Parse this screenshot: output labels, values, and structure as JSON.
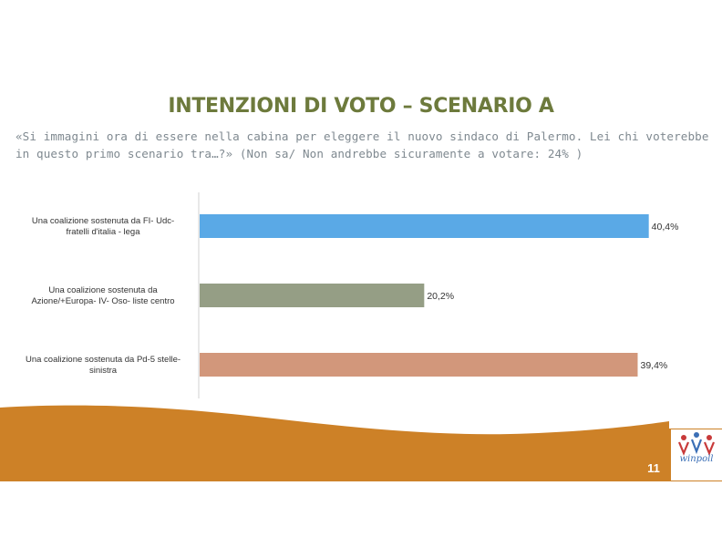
{
  "page": {
    "title": "INTENZIONI DI VOTO – SCENARIO A",
    "question": "«Si immagini ora di essere nella cabina per eleggere il nuovo sindaco di Palermo. Lei chi voterebbe in questo primo scenario tra…?» (Non sa/ Non andrebbe sicuramente a votare: 24% )",
    "page_number": "11",
    "logo_text": "winpoll"
  },
  "colors": {
    "title": "#6d7a3c",
    "band": "#cd8127",
    "bar1": "#5aa9e6",
    "bar2": "#959e85",
    "bar3": "#d2977b"
  },
  "chart_data": {
    "type": "bar",
    "orientation": "horizontal",
    "categories": [
      "Una coalizione sostenuta da FI- Udc-fratelli d'italia - lega",
      "Una coalizione sostenuta da Azione/+Europa- IV- Oso- liste centro",
      "Una coalizione sostenuta da Pd-5 stelle-sinistra"
    ],
    "category_lines": [
      [
        "Una coalizione sostenuta da FI- Udc-",
        "fratelli d'italia - lega"
      ],
      [
        "Una coalizione sostenuta da",
        "Azione/+Europa- IV- Oso- liste centro"
      ],
      [
        "Una coalizione sostenuta da Pd-5 stelle-",
        "sinistra"
      ]
    ],
    "values": [
      40.4,
      20.2,
      39.4
    ],
    "labels": [
      "40,4%",
      "20,2%",
      "39,4%"
    ],
    "unit": "%",
    "xlim": [
      0,
      41
    ]
  }
}
